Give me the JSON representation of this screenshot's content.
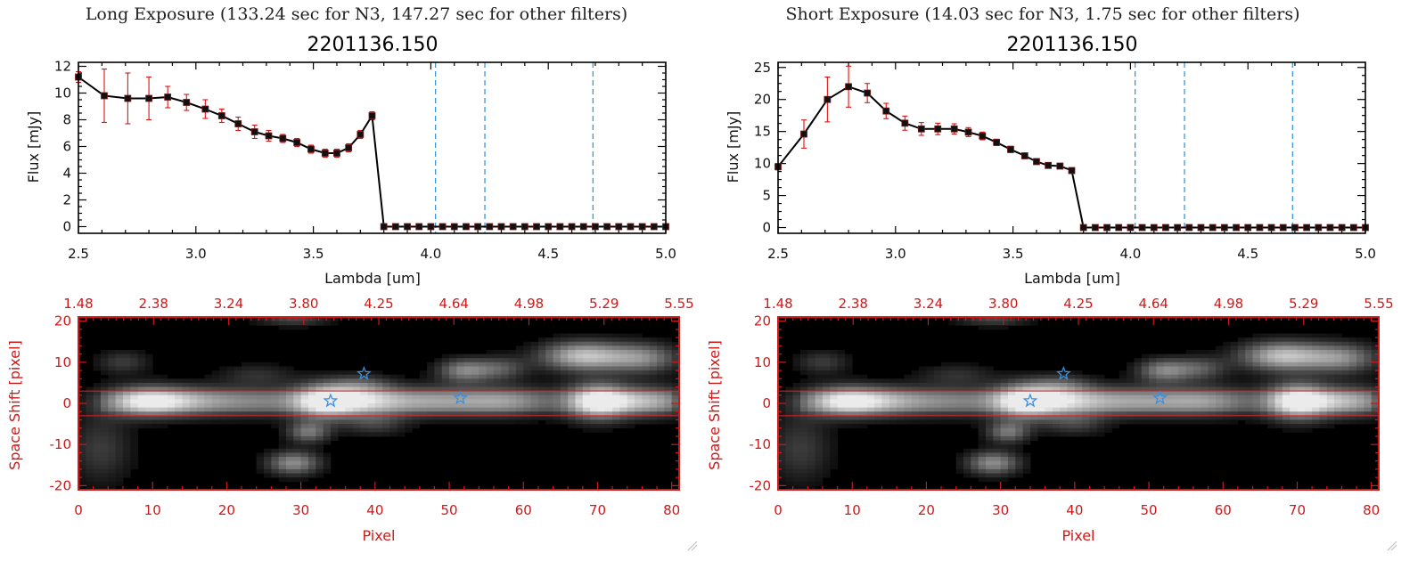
{
  "colors": {
    "line": "#000000",
    "marker": "#111111",
    "error_bar": "#e01010",
    "zero_line": "#e02020",
    "filter_edge": "#2a8fd8",
    "image_frame": "#d01818",
    "aperture": "#e02020",
    "star_marker": "#3a8fe0"
  },
  "chart_data": [
    {
      "type": "line",
      "panel_title": "Long Exposure (133.24 sec for N3, 147.27 sec for other filters)",
      "title": "2201136.150",
      "xlabel": "Lambda [um]",
      "ylabel": "Flux [mJy]",
      "xlim": [
        2.5,
        5.0
      ],
      "ylim": [
        -0.5,
        12.3
      ],
      "xticks": [
        "2.5",
        "3.0",
        "3.5",
        "4.0",
        "4.5",
        "5.0"
      ],
      "yticks": [
        "0",
        "2",
        "4",
        "6",
        "8",
        "10",
        "12"
      ],
      "vertical_lines": [
        4.02,
        4.23,
        4.69
      ],
      "series": [
        {
          "x": [
            2.5,
            2.61,
            2.71,
            2.8,
            2.88,
            2.96,
            3.04,
            3.11,
            3.18,
            3.25,
            3.31,
            3.37,
            3.43,
            3.49,
            3.55,
            3.6,
            3.65,
            3.7,
            3.75,
            3.8,
            3.85,
            3.9,
            3.95,
            4.0,
            4.05,
            4.1,
            4.15,
            4.2,
            4.25,
            4.3,
            4.35,
            4.4,
            4.45,
            4.5,
            4.55,
            4.6,
            4.65,
            4.7,
            4.75,
            4.8,
            4.85,
            4.9,
            4.95,
            5.0
          ],
          "y": [
            11.2,
            9.8,
            9.6,
            9.6,
            9.7,
            9.3,
            8.8,
            8.3,
            7.7,
            7.1,
            6.8,
            6.6,
            6.3,
            5.8,
            5.5,
            5.5,
            5.9,
            6.9,
            8.3,
            0,
            0,
            0,
            0,
            0,
            0,
            0,
            0,
            0,
            0,
            0,
            0,
            0,
            0,
            0,
            0,
            0,
            0,
            0,
            0,
            0,
            0,
            0,
            0,
            0
          ],
          "err": [
            0.4,
            2.0,
            1.9,
            1.6,
            0.8,
            0.6,
            0.7,
            0.5,
            0.5,
            0.5,
            0.4,
            0.3,
            0.3,
            0.3,
            0.3,
            0.3,
            0.3,
            0.3,
            0.3,
            0,
            0,
            0,
            0,
            0,
            0,
            0,
            0,
            0,
            0,
            0,
            0,
            0,
            0,
            0,
            0,
            0,
            0,
            0,
            0,
            0,
            0,
            0,
            0,
            0
          ]
        }
      ]
    },
    {
      "type": "line",
      "panel_title": "Short Exposure (14.03 sec for N3, 1.75 sec for other filters)",
      "title": "2201136.150",
      "xlabel": "Lambda [um]",
      "ylabel": "Flux [mJy]",
      "xlim": [
        2.5,
        5.0
      ],
      "ylim": [
        -0.9,
        25.8
      ],
      "xticks": [
        "2.5",
        "3.0",
        "3.5",
        "4.0",
        "4.5",
        "5.0"
      ],
      "yticks": [
        "0",
        "5",
        "10",
        "15",
        "20",
        "25"
      ],
      "vertical_lines": [
        4.02,
        4.23,
        4.69
      ],
      "series": [
        {
          "x": [
            2.5,
            2.61,
            2.71,
            2.8,
            2.88,
            2.96,
            3.04,
            3.11,
            3.18,
            3.25,
            3.31,
            3.37,
            3.43,
            3.49,
            3.55,
            3.6,
            3.65,
            3.7,
            3.75,
            3.8,
            3.85,
            3.9,
            3.95,
            4.0,
            4.05,
            4.1,
            4.15,
            4.2,
            4.25,
            4.3,
            4.35,
            4.4,
            4.45,
            4.5,
            4.55,
            4.6,
            4.65,
            4.7,
            4.75,
            4.8,
            4.85,
            4.9,
            4.95,
            5.0
          ],
          "y": [
            9.5,
            14.6,
            20.0,
            22.0,
            21.0,
            18.2,
            16.3,
            15.4,
            15.4,
            15.4,
            14.9,
            14.3,
            13.3,
            12.2,
            11.2,
            10.3,
            9.7,
            9.6,
            8.9,
            0,
            0,
            0,
            0,
            0,
            0,
            0,
            0,
            0,
            0,
            0,
            0,
            0,
            0,
            0,
            0,
            0,
            0,
            0,
            0,
            0,
            0,
            0,
            0,
            0
          ],
          "err": [
            0.5,
            2.2,
            3.5,
            3.2,
            1.5,
            1.2,
            1.1,
            1.0,
            0.9,
            0.8,
            0.7,
            0.6,
            0.5,
            0.5,
            0.4,
            0.4,
            0.4,
            0.4,
            0.4,
            0,
            0,
            0,
            0,
            0,
            0,
            0,
            0,
            0,
            0,
            0,
            0,
            0,
            0,
            0,
            0,
            0,
            0,
            0,
            0,
            0,
            0,
            0,
            0,
            0
          ]
        }
      ]
    },
    {
      "type": "heatmap",
      "xlabel": "Pixel",
      "ylabel": "Space Shift [pixel]",
      "xlim": [
        0,
        81
      ],
      "ylim": [
        -21,
        21
      ],
      "xticks": [
        "0",
        "10",
        "20",
        "30",
        "40",
        "50",
        "60",
        "70",
        "80"
      ],
      "yticks": [
        "-20",
        "-10",
        "0",
        "10",
        "20"
      ],
      "top_ticks": [
        "1.48",
        "2.38",
        "3.24",
        "3.80",
        "4.25",
        "4.64",
        "4.98",
        "5.29",
        "5.55"
      ],
      "aperture": [
        -3,
        3
      ],
      "blobs": [
        {
          "x": 9,
          "y": 0.5,
          "sx": 4.0,
          "sy": 2.5,
          "v": 0.9
        },
        {
          "x": 16,
          "y": 0.5,
          "sx": 4.5,
          "sy": 2.5,
          "v": 0.45
        },
        {
          "x": 25,
          "y": 0.5,
          "sx": 5.0,
          "sy": 2.5,
          "v": 0.4
        },
        {
          "x": 33,
          "y": 0.5,
          "sx": 3.0,
          "sy": 3.0,
          "v": 0.8
        },
        {
          "x": 38,
          "y": 0.5,
          "sx": 4.0,
          "sy": 2.5,
          "v": 0.6
        },
        {
          "x": 47,
          "y": 0.5,
          "sx": 6.0,
          "sy": 2.5,
          "v": 0.55
        },
        {
          "x": 58,
          "y": 0.5,
          "sx": 5.0,
          "sy": 2.5,
          "v": 0.5
        },
        {
          "x": 70,
          "y": 0.5,
          "sx": 3.0,
          "sy": 3.0,
          "v": 1.0
        },
        {
          "x": 77,
          "y": 0.5,
          "sx": 4.0,
          "sy": 2.5,
          "v": 0.65
        },
        {
          "x": 68,
          "y": 11.5,
          "sx": 4.0,
          "sy": 2.5,
          "v": 0.8
        },
        {
          "x": 76,
          "y": 11,
          "sx": 3.5,
          "sy": 2.5,
          "v": 0.55
        },
        {
          "x": 52,
          "y": 8,
          "sx": 2.5,
          "sy": 2.0,
          "v": 0.55
        },
        {
          "x": 57,
          "y": 8.5,
          "sx": 2.5,
          "sy": 2.0,
          "v": 0.35
        },
        {
          "x": 6,
          "y": 10,
          "sx": 2.5,
          "sy": 2.0,
          "v": 0.25
        },
        {
          "x": 24,
          "y": 7,
          "sx": 3.5,
          "sy": 1.8,
          "v": 0.2
        },
        {
          "x": 31,
          "y": -7,
          "sx": 2.0,
          "sy": 1.8,
          "v": 0.5
        },
        {
          "x": 29,
          "y": -14.5,
          "sx": 2.5,
          "sy": 2.0,
          "v": 0.6
        },
        {
          "x": 3,
          "y": -11,
          "sx": 3.0,
          "sy": 6.0,
          "v": 0.25
        },
        {
          "x": 40,
          "y": -5,
          "sx": 3.0,
          "sy": 2.0,
          "v": 0.25
        },
        {
          "x": 38,
          "y": 4.5,
          "sx": 3.0,
          "sy": 1.8,
          "v": 0.3
        },
        {
          "x": 29,
          "y": 20.5,
          "sx": 3.5,
          "sy": 1.2,
          "v": 0.3
        }
      ],
      "stars": [
        {
          "x": 34,
          "y": 0.6
        },
        {
          "x": 38.5,
          "y": 7.2
        },
        {
          "x": 51.5,
          "y": 1.3
        }
      ]
    }
  ]
}
